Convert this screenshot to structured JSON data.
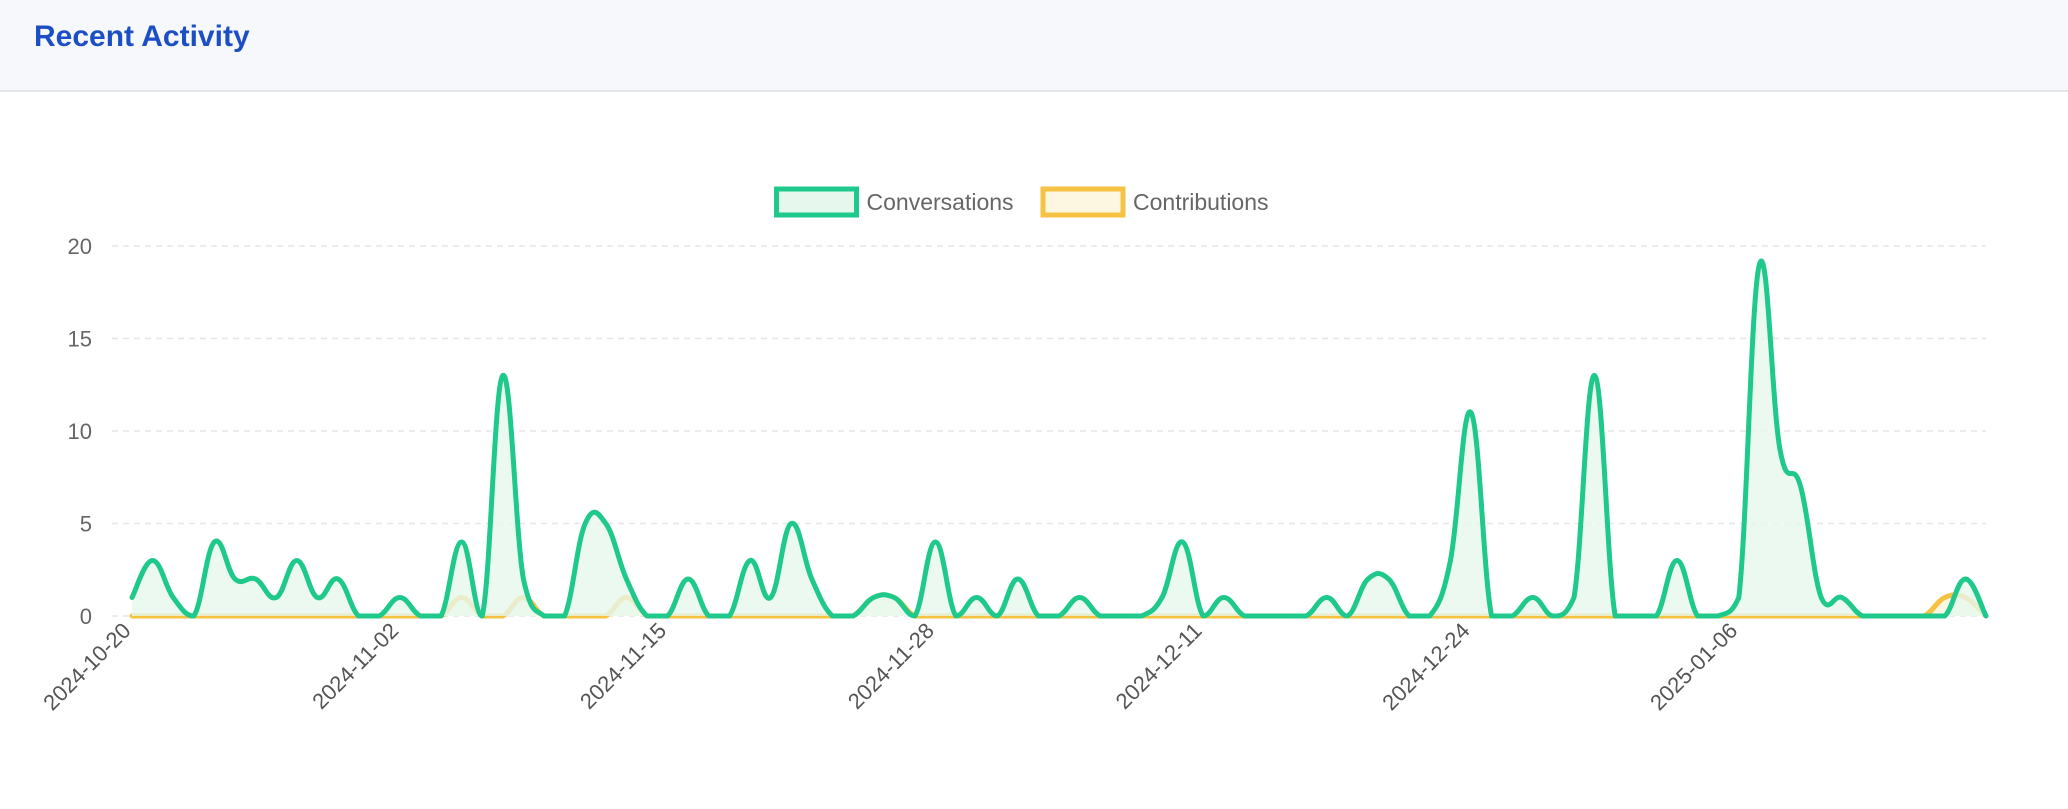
{
  "header": {
    "title": "Recent Activity"
  },
  "chart_data": {
    "type": "area",
    "x_start": "2024-10-20",
    "x_end": "2025-01-17",
    "x_tick_labels": [
      "2024-10-20",
      "2024-11-02",
      "2024-11-15",
      "2024-11-28",
      "2024-12-11",
      "2024-12-24",
      "2025-01-06"
    ],
    "ylim": [
      0,
      20
    ],
    "y_ticks": [
      0,
      5,
      10,
      15,
      20
    ],
    "grid": true,
    "legend_position": "top-center",
    "series": [
      {
        "name": "Conversations",
        "color": "#1ec98b",
        "fill": "#e6f7ee",
        "values": [
          1,
          3,
          1,
          0,
          4,
          2,
          2,
          1,
          3,
          1,
          2,
          0,
          0,
          1,
          0,
          0,
          4,
          0,
          13,
          2,
          0,
          0,
          5,
          5,
          2,
          0,
          0,
          2,
          0,
          0,
          3,
          1,
          5,
          2,
          0,
          0,
          1,
          1,
          0,
          4,
          0,
          1,
          0,
          2,
          0,
          0,
          1,
          0,
          0,
          0,
          1,
          4,
          0,
          1,
          0,
          0,
          0,
          0,
          1,
          0,
          2,
          2,
          0,
          0,
          3,
          11,
          0,
          0,
          1,
          0,
          1,
          13,
          0,
          0,
          0,
          3,
          0,
          0,
          1,
          19,
          9,
          7,
          1,
          1,
          0,
          0,
          0,
          0,
          0,
          2,
          0
        ]
      },
      {
        "name": "Contributions",
        "color": "#f5c242",
        "fill": "#fdf6e0",
        "values": [
          0,
          0,
          0,
          0,
          0,
          0,
          0,
          0,
          0,
          0,
          0,
          0,
          0,
          0,
          0,
          0,
          1,
          0,
          0,
          1,
          0,
          0,
          0,
          0,
          1,
          0,
          0,
          0,
          0,
          0,
          0,
          0,
          0,
          0,
          0,
          0,
          1,
          1,
          0,
          0,
          0,
          0,
          0,
          0,
          0,
          0,
          0,
          0,
          0,
          0,
          0,
          0,
          0,
          0,
          0,
          0,
          0,
          0,
          0,
          0,
          0,
          0,
          0,
          0,
          0,
          0,
          0,
          0,
          0,
          0,
          0,
          0,
          0,
          0,
          0,
          0,
          0,
          0,
          0,
          0,
          0,
          0,
          0,
          0,
          0,
          0,
          0,
          0,
          1,
          1,
          0
        ]
      }
    ]
  }
}
